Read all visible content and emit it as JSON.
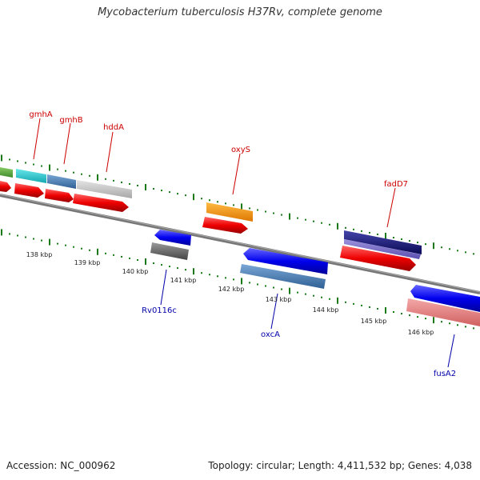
{
  "title": "Mycobacterium tuberculosis H37Rv, complete genome",
  "footer": {
    "accession": "Accession: NC_000962",
    "stats": "Topology: circular; Length: 4,411,532 bp; Genes: 4,038"
  },
  "ruler_labels": [
    "138 kbp",
    "139 kbp",
    "140 kbp",
    "141 kbp",
    "142 kbp",
    "143 kbp",
    "144 kbp",
    "145 kbp",
    "146 kbp"
  ],
  "gene_labels": {
    "forward": [
      "gmhA",
      "gmhB",
      "hddA",
      "oxyS",
      "fadD7"
    ],
    "reverse": [
      "Rv0116c",
      "oxcA",
      "fusA2"
    ]
  },
  "colors": {
    "forward_label": "#cc0000",
    "reverse_label": "#0000aa",
    "tick": "#1a7a1a",
    "backbone": "#777777",
    "cds_red": "#ee0000",
    "cds_blue": "#0000ee"
  }
}
